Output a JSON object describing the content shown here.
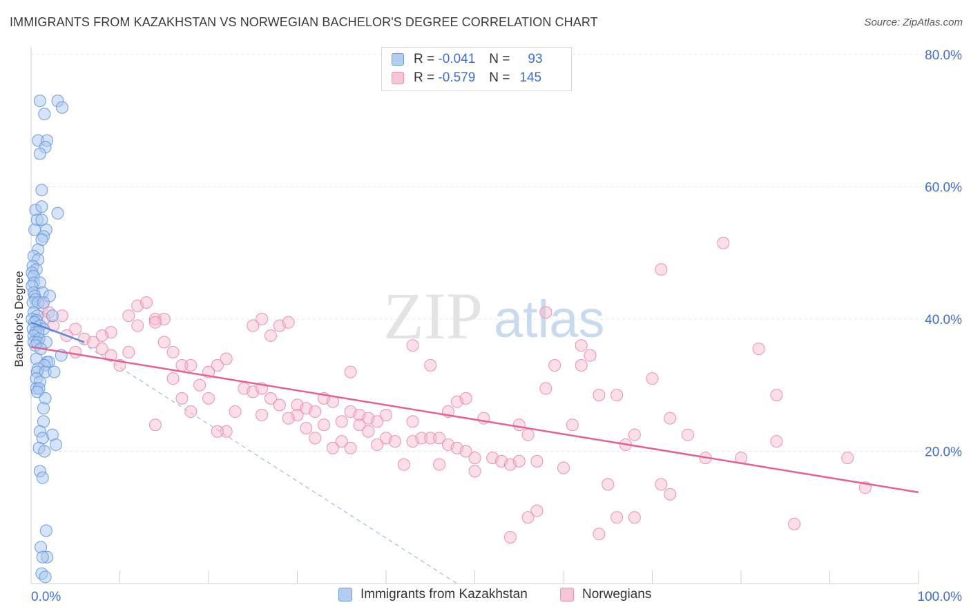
{
  "title": "IMMIGRANTS FROM KAZAKHSTAN VS NORWEGIAN BACHELOR'S DEGREE CORRELATION CHART",
  "source": "Source: ZipAtlas.com",
  "watermark": {
    "zip": "ZIP",
    "atlas": "atlas"
  },
  "legend": {
    "r_label": "R =",
    "n_label": "N =",
    "series": [
      {
        "name": "Immigrants from Kazakhstan",
        "r": "-0.041",
        "n": "93"
      },
      {
        "name": "Norwegians",
        "r": "-0.579",
        "n": "145"
      }
    ]
  },
  "colors": {
    "kaz_fill": "#a9c8f0",
    "kaz_stroke": "#6b9bdc",
    "kaz_line": "#5b86d6",
    "nor_fill": "#f6b8cb",
    "nor_stroke": "#eb8fae",
    "nor_line": "#e8608f",
    "axis_text": "#3b6fd6",
    "grid": "#e6e6e6"
  },
  "chart_data": {
    "type": "scatter",
    "title": "IMMIGRANTS FROM KAZAKHSTAN VS NORWEGIAN BACHELOR'S DEGREE CORRELATION CHART",
    "xlabel": "",
    "ylabel": "Bachelor's Degree",
    "xlim": [
      0,
      100
    ],
    "ylim": [
      0,
      80
    ],
    "x_tick_labels": [
      "0.0%",
      "100.0%"
    ],
    "y_ticks": [
      20,
      40,
      60,
      80
    ],
    "y_tick_labels": [
      "20.0%",
      "40.0%",
      "60.0%",
      "80.0%"
    ],
    "series": [
      {
        "name": "Immigrants from Kazakhstan",
        "points": [
          [
            1,
            73
          ],
          [
            3,
            73
          ],
          [
            3.5,
            72
          ],
          [
            1.5,
            71
          ],
          [
            0.8,
            67
          ],
          [
            1.8,
            67
          ],
          [
            1.6,
            66
          ],
          [
            1,
            65
          ],
          [
            1.2,
            59.5
          ],
          [
            0.5,
            56.5
          ],
          [
            1.2,
            57
          ],
          [
            3,
            56
          ],
          [
            0.7,
            55
          ],
          [
            1.2,
            55
          ],
          [
            1.7,
            53.5
          ],
          [
            0.4,
            53.5
          ],
          [
            1.4,
            52.5
          ],
          [
            1.2,
            52
          ],
          [
            0.8,
            50.5
          ],
          [
            0.3,
            49.5
          ],
          [
            0.8,
            49
          ],
          [
            0.2,
            48
          ],
          [
            0.6,
            47.5
          ],
          [
            0.1,
            47
          ],
          [
            0.3,
            46.5
          ],
          [
            0.3,
            45.5
          ],
          [
            1,
            45.5
          ],
          [
            0.1,
            45
          ],
          [
            0.3,
            44
          ],
          [
            1.3,
            44
          ],
          [
            0.4,
            43.5
          ],
          [
            2.1,
            43.5
          ],
          [
            0.5,
            43
          ],
          [
            0.2,
            42.5
          ],
          [
            0.8,
            42.5
          ],
          [
            1.4,
            42.5
          ],
          [
            0.3,
            41
          ],
          [
            0.7,
            40.5
          ],
          [
            2.4,
            40.5
          ],
          [
            0.1,
            40
          ],
          [
            0.6,
            39.8
          ],
          [
            0.4,
            39.5
          ],
          [
            1,
            39
          ],
          [
            0.2,
            38.5
          ],
          [
            1.4,
            38.5
          ],
          [
            0.5,
            38
          ],
          [
            0.8,
            38
          ],
          [
            0.3,
            37.5
          ],
          [
            0.9,
            37
          ],
          [
            0.3,
            36.5
          ],
          [
            0.7,
            36.5
          ],
          [
            1.7,
            36.5
          ],
          [
            0.5,
            36
          ],
          [
            1.1,
            35.5
          ],
          [
            3.4,
            34.5
          ],
          [
            0.6,
            34
          ],
          [
            1.8,
            33.5
          ],
          [
            2,
            33.5
          ],
          [
            1.5,
            33
          ],
          [
            0.8,
            32.5
          ],
          [
            0.7,
            32
          ],
          [
            1.6,
            32
          ],
          [
            2.6,
            32
          ],
          [
            0.6,
            31
          ],
          [
            1,
            30.5
          ],
          [
            0.6,
            29.5
          ],
          [
            0.9,
            29.5
          ],
          [
            0.7,
            29
          ],
          [
            1.6,
            28
          ],
          [
            1.4,
            26.5
          ],
          [
            1.4,
            24.5
          ],
          [
            1,
            23
          ],
          [
            2.4,
            22.5
          ],
          [
            1.3,
            22
          ],
          [
            2.8,
            21
          ],
          [
            0.9,
            20.5
          ],
          [
            1.5,
            20
          ],
          [
            1,
            17
          ],
          [
            1.3,
            16
          ],
          [
            1.7,
            8
          ],
          [
            1.1,
            5.5
          ],
          [
            1.8,
            4
          ],
          [
            1.3,
            4
          ],
          [
            1.2,
            1.5
          ],
          [
            1.6,
            1
          ]
        ],
        "trend": {
          "x0": 0,
          "y0": 39.5,
          "x1": 6,
          "y1": 36.5
        }
      },
      {
        "name": "Norwegians",
        "points": [
          [
            1.3,
            42
          ],
          [
            2,
            41
          ],
          [
            3.5,
            40.5
          ],
          [
            1.5,
            40
          ],
          [
            2.5,
            39
          ],
          [
            5,
            38.5
          ],
          [
            4,
            37.5
          ],
          [
            6,
            37
          ],
          [
            7,
            36.5
          ],
          [
            9,
            38
          ],
          [
            8,
            37.5
          ],
          [
            11,
            40.5
          ],
          [
            12,
            42
          ],
          [
            13,
            42.5
          ],
          [
            14,
            40
          ],
          [
            15,
            40
          ],
          [
            12,
            39
          ],
          [
            14,
            39.5
          ],
          [
            11,
            35
          ],
          [
            8,
            35.5
          ],
          [
            5,
            35
          ],
          [
            9,
            34.5
          ],
          [
            10,
            33
          ],
          [
            15,
            36.5
          ],
          [
            16,
            35
          ],
          [
            17,
            33
          ],
          [
            18,
            33
          ],
          [
            22,
            34
          ],
          [
            21,
            33
          ],
          [
            20,
            32
          ],
          [
            16,
            31
          ],
          [
            19,
            30
          ],
          [
            24,
            29.5
          ],
          [
            25,
            29
          ],
          [
            26,
            29.5
          ],
          [
            27,
            28
          ],
          [
            28,
            27
          ],
          [
            30,
            27
          ],
          [
            31,
            26.5
          ],
          [
            32,
            26
          ],
          [
            30,
            25.5
          ],
          [
            29,
            25
          ],
          [
            33,
            28
          ],
          [
            34,
            27.5
          ],
          [
            36,
            26
          ],
          [
            37,
            25.5
          ],
          [
            38,
            25
          ],
          [
            39,
            24.5
          ],
          [
            40,
            25.5
          ],
          [
            35,
            24.5
          ],
          [
            33,
            24
          ],
          [
            31,
            23.5
          ],
          [
            32,
            22
          ],
          [
            26,
            25.5
          ],
          [
            23,
            26
          ],
          [
            22,
            23
          ],
          [
            21,
            23
          ],
          [
            18,
            26
          ],
          [
            14,
            24
          ],
          [
            20,
            28
          ],
          [
            17,
            28
          ],
          [
            28,
            39
          ],
          [
            26,
            40
          ],
          [
            25,
            39
          ],
          [
            29,
            39.5
          ],
          [
            27,
            37.5
          ],
          [
            36,
            32
          ],
          [
            43,
            36
          ],
          [
            45,
            33
          ],
          [
            37,
            24
          ],
          [
            38,
            23
          ],
          [
            40,
            22
          ],
          [
            41,
            21.5
          ],
          [
            43,
            21.5
          ],
          [
            44,
            22
          ],
          [
            45,
            22
          ],
          [
            46,
            22
          ],
          [
            47,
            21
          ],
          [
            48,
            20.5
          ],
          [
            49,
            20
          ],
          [
            50,
            19
          ],
          [
            52,
            19
          ],
          [
            53,
            18.5
          ],
          [
            54,
            18
          ],
          [
            55,
            18.5
          ],
          [
            57,
            18.5
          ],
          [
            50,
            17
          ],
          [
            46,
            18
          ],
          [
            42,
            18
          ],
          [
            39,
            21
          ],
          [
            36,
            20.5
          ],
          [
            35,
            21.5
          ],
          [
            34,
            20.5
          ],
          [
            43,
            24.5
          ],
          [
            47,
            26
          ],
          [
            48,
            27.5
          ],
          [
            49,
            28
          ],
          [
            51,
            25
          ],
          [
            55,
            24
          ],
          [
            56,
            22.5
          ],
          [
            58,
            29.5
          ],
          [
            59,
            33
          ],
          [
            62,
            33
          ],
          [
            62,
            36
          ],
          [
            63,
            34.5
          ],
          [
            64,
            28.5
          ],
          [
            66,
            28.5
          ],
          [
            67,
            21
          ],
          [
            68,
            22.5
          ],
          [
            70,
            31
          ],
          [
            72,
            25
          ],
          [
            71,
            15
          ],
          [
            72,
            13.5
          ],
          [
            65,
            15
          ],
          [
            60,
            17.5
          ],
          [
            61,
            24
          ],
          [
            57,
            11
          ],
          [
            56,
            10
          ],
          [
            54,
            7
          ],
          [
            64,
            7.5
          ],
          [
            66,
            10
          ],
          [
            68,
            10
          ],
          [
            71,
            47.5
          ],
          [
            78,
            51.5
          ],
          [
            74,
            22.5
          ],
          [
            76,
            19
          ],
          [
            80,
            19
          ],
          [
            82,
            35.5
          ],
          [
            84,
            28.5
          ],
          [
            84,
            21.5
          ],
          [
            92,
            19
          ],
          [
            94,
            14.5
          ],
          [
            86,
            9
          ],
          [
            58,
            41
          ]
        ],
        "trend": {
          "x0": 0,
          "y0": 35.8,
          "x1": 100,
          "y1": 13.8
        }
      }
    ],
    "reference_line": {
      "x0": 5,
      "y0": 37,
      "x1": 48,
      "y1": 0
    }
  }
}
